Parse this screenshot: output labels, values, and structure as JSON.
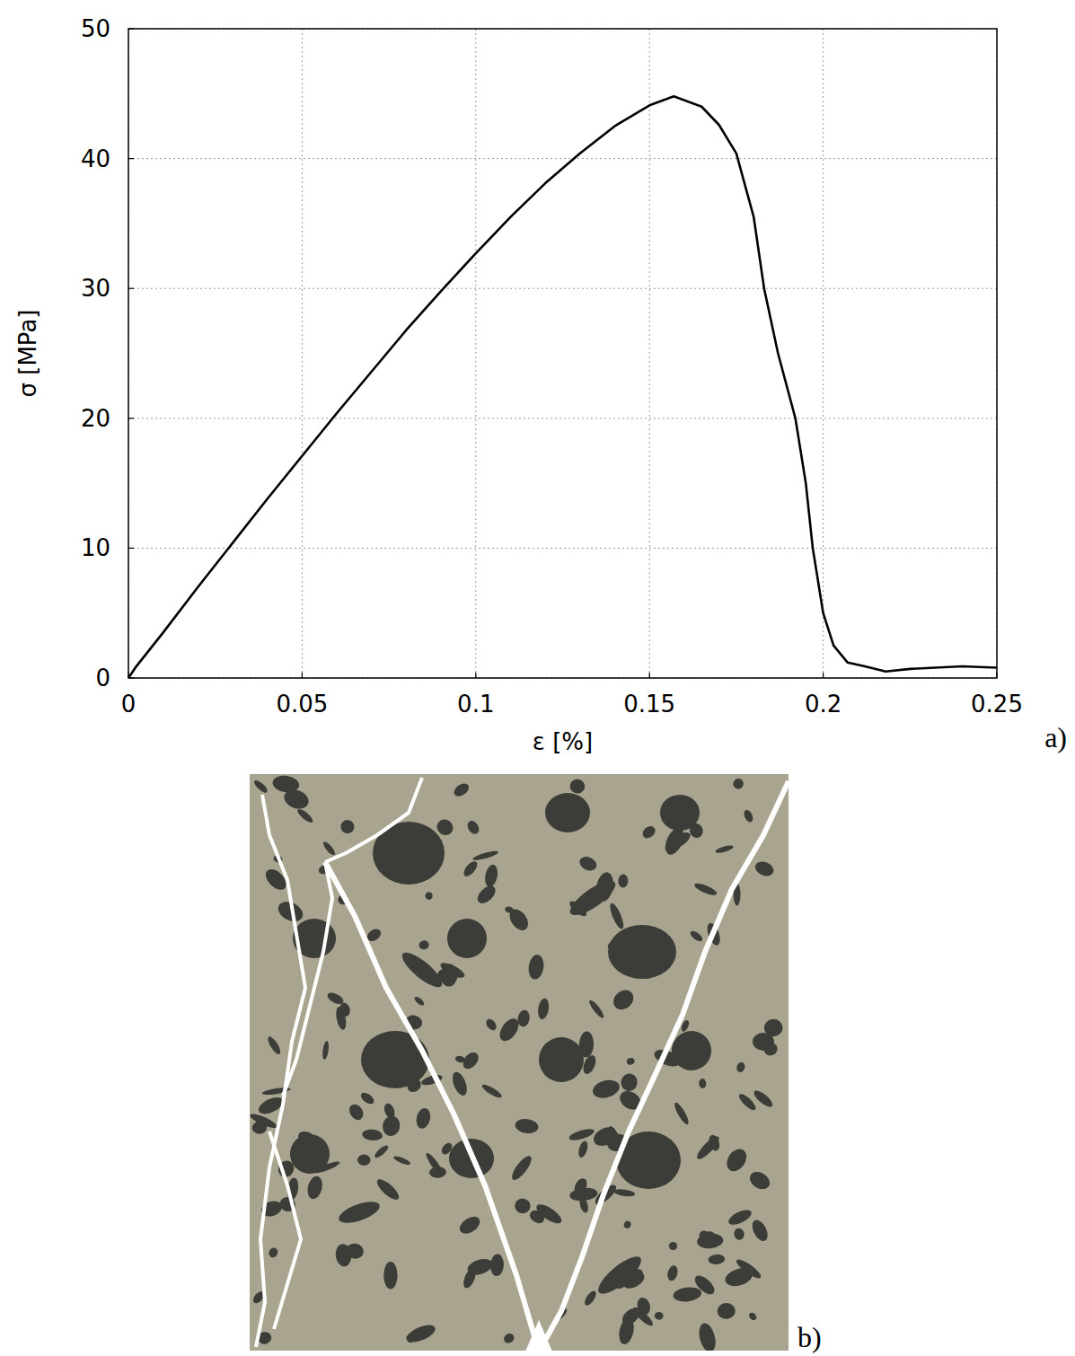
{
  "chart_data": {
    "type": "line",
    "x_label": "ε [%]",
    "y_label": "σ [MPa]",
    "panel_label": "a)",
    "x": [
      0,
      0.002,
      0.01,
      0.02,
      0.03,
      0.04,
      0.05,
      0.06,
      0.07,
      0.08,
      0.09,
      0.1,
      0.11,
      0.12,
      0.13,
      0.14,
      0.15,
      0.157,
      0.165,
      0.17,
      0.175,
      0.18,
      0.183,
      0.187,
      0.192,
      0.195,
      0.197,
      0.2,
      0.203,
      0.207,
      0.212,
      0.218,
      0.225,
      0.24,
      0.25
    ],
    "values": [
      0,
      0.8,
      3.5,
      7,
      10.4,
      13.8,
      17.1,
      20.4,
      23.6,
      26.8,
      29.8,
      32.7,
      35.5,
      38.1,
      40.4,
      42.5,
      44.1,
      44.8,
      44,
      42.6,
      40.4,
      35.5,
      30,
      25,
      20,
      15,
      10,
      5,
      2.5,
      1.2,
      0.9,
      0.5,
      0.7,
      0.9,
      0.8
    ],
    "color": "#000000",
    "line_style": "solid",
    "xlim": [
      0,
      0.25
    ],
    "xticks": [
      0,
      0.05,
      0.1,
      0.15,
      0.2,
      0.25
    ],
    "ylim": [
      0,
      50
    ],
    "yticks": [
      0,
      10,
      20,
      30,
      40,
      50
    ],
    "grid": true
  },
  "image": {
    "label": "b)"
  }
}
